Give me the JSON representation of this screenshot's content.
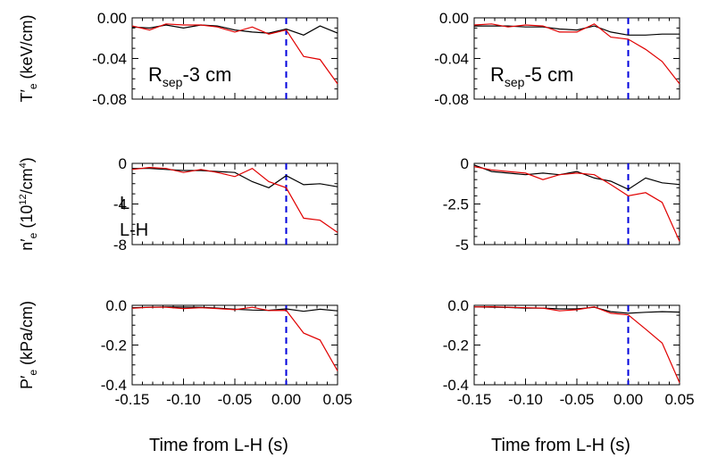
{
  "figure": {
    "x_axis_label": "Time from L-H (s)",
    "legend": [
      {
        "label": "L",
        "color": "#000000"
      },
      {
        "label": "L-H",
        "color": "#e00000"
      }
    ],
    "colors": {
      "L": "#000000",
      "L-H": "#e00000",
      "transition_line": "#0000dd"
    }
  },
  "chart_data": [
    {
      "type": "line",
      "row": 0,
      "col": 0,
      "ylabel": "T′e (keV/cm)",
      "annotation": "Rsep-3 cm",
      "xlim": [
        -0.15,
        0.05
      ],
      "ylim": [
        -0.08,
        0.0
      ],
      "xticks": [
        "-0.15",
        "-0.10",
        "-0.05",
        "0.00",
        "0.05"
      ],
      "yticks": [
        {
          "v": 0.0,
          "t": "0.00"
        },
        {
          "v": -0.04,
          "t": "-0.04"
        },
        {
          "v": -0.08,
          "t": "-0.08"
        }
      ],
      "vline_x": 0.0,
      "series": [
        {
          "name": "L",
          "x": [
            -0.15,
            -0.133,
            -0.117,
            -0.1,
            -0.083,
            -0.067,
            -0.05,
            -0.033,
            -0.017,
            0.0,
            0.017,
            0.033,
            0.05
          ],
          "y": [
            -0.009,
            -0.01,
            -0.007,
            -0.01,
            -0.007,
            -0.008,
            -0.012,
            -0.014,
            -0.015,
            -0.011,
            -0.017,
            -0.008,
            -0.015
          ]
        },
        {
          "name": "L-H",
          "x": [
            -0.15,
            -0.133,
            -0.117,
            -0.1,
            -0.083,
            -0.067,
            -0.05,
            -0.033,
            -0.017,
            0.0,
            0.017,
            0.033,
            0.05
          ],
          "y": [
            -0.008,
            -0.012,
            -0.006,
            -0.007,
            -0.007,
            -0.009,
            -0.014,
            -0.009,
            -0.016,
            -0.012,
            -0.038,
            -0.041,
            -0.065
          ]
        }
      ]
    },
    {
      "type": "line",
      "row": 0,
      "col": 1,
      "ylabel": "",
      "annotation": "Rsep-5 cm",
      "xlim": [
        -0.15,
        0.05
      ],
      "ylim": [
        -0.08,
        0.0
      ],
      "xticks": [
        "-0.15",
        "-0.10",
        "-0.05",
        "0.00",
        "0.05"
      ],
      "yticks": [
        {
          "v": 0.0,
          "t": "0.00"
        },
        {
          "v": -0.04,
          "t": "-0.04"
        },
        {
          "v": -0.08,
          "t": "-0.08"
        }
      ],
      "vline_x": 0.0,
      "series": [
        {
          "name": "L",
          "x": [
            -0.15,
            -0.133,
            -0.117,
            -0.1,
            -0.083,
            -0.067,
            -0.05,
            -0.033,
            -0.017,
            0.0,
            0.017,
            0.033,
            0.05
          ],
          "y": [
            -0.008,
            -0.008,
            -0.008,
            -0.009,
            -0.009,
            -0.011,
            -0.012,
            -0.008,
            -0.014,
            -0.017,
            -0.017,
            -0.016,
            -0.016
          ]
        },
        {
          "name": "L-H",
          "x": [
            -0.15,
            -0.133,
            -0.117,
            -0.1,
            -0.083,
            -0.067,
            -0.05,
            -0.033,
            -0.017,
            0.0,
            0.017,
            0.033,
            0.05
          ],
          "y": [
            -0.007,
            -0.006,
            -0.009,
            -0.007,
            -0.008,
            -0.014,
            -0.014,
            -0.006,
            -0.019,
            -0.021,
            -0.031,
            -0.043,
            -0.065
          ]
        }
      ]
    },
    {
      "type": "line",
      "row": 1,
      "col": 0,
      "ylabel": "n′e (10^12/cm^4)",
      "annotation": "",
      "xlim": [
        -0.15,
        0.05
      ],
      "ylim": [
        -8,
        0
      ],
      "xticks": [
        "-0.15",
        "-0.10",
        "-0.05",
        "0.00",
        "0.05"
      ],
      "yticks": [
        {
          "v": 0,
          "t": "0"
        },
        {
          "v": -4,
          "t": "-4"
        },
        {
          "v": -8,
          "t": "-8"
        }
      ],
      "vline_x": 0.0,
      "series": [
        {
          "name": "L",
          "x": [
            -0.15,
            -0.133,
            -0.117,
            -0.1,
            -0.083,
            -0.067,
            -0.05,
            -0.033,
            -0.017,
            0.0,
            0.017,
            0.033,
            0.05
          ],
          "y": [
            -0.5,
            -0.5,
            -0.6,
            -0.7,
            -0.7,
            -0.8,
            -0.9,
            -1.8,
            -2.4,
            -1.2,
            -2.1,
            -2.0,
            -2.3
          ]
        },
        {
          "name": "L-H",
          "x": [
            -0.15,
            -0.133,
            -0.117,
            -0.1,
            -0.083,
            -0.067,
            -0.05,
            -0.033,
            -0.017,
            0.0,
            0.017,
            0.033,
            0.05
          ],
          "y": [
            -0.6,
            -0.4,
            -0.5,
            -0.9,
            -0.6,
            -0.9,
            -1.3,
            -0.5,
            -1.8,
            -2.4,
            -5.4,
            -5.6,
            -6.8
          ]
        }
      ]
    },
    {
      "type": "line",
      "row": 1,
      "col": 1,
      "ylabel": "",
      "annotation": "",
      "xlim": [
        -0.15,
        0.05
      ],
      "ylim": [
        -5,
        0
      ],
      "xticks": [
        "-0.15",
        "-0.10",
        "-0.05",
        "0.00",
        "0.05"
      ],
      "yticks": [
        {
          "v": 0,
          "t": "0"
        },
        {
          "v": -2.5,
          "t": "-2.5"
        },
        {
          "v": -5,
          "t": "-5"
        }
      ],
      "vline_x": 0.0,
      "series": [
        {
          "name": "L",
          "x": [
            -0.15,
            -0.133,
            -0.117,
            -0.1,
            -0.083,
            -0.067,
            -0.05,
            -0.033,
            -0.017,
            0.0,
            0.017,
            0.033,
            0.05
          ],
          "y": [
            -0.1,
            -0.5,
            -0.6,
            -0.7,
            -0.6,
            -0.7,
            -0.5,
            -0.9,
            -1.1,
            -1.6,
            -0.9,
            -1.2,
            -1.3
          ]
        },
        {
          "name": "L-H",
          "x": [
            -0.15,
            -0.133,
            -0.117,
            -0.1,
            -0.083,
            -0.067,
            -0.05,
            -0.033,
            -0.017,
            0.0,
            0.017,
            0.033,
            0.05
          ],
          "y": [
            -0.2,
            -0.4,
            -0.5,
            -0.6,
            -1.0,
            -0.7,
            -0.6,
            -0.7,
            -1.3,
            -2.0,
            -1.8,
            -2.4,
            -4.8
          ]
        }
      ]
    },
    {
      "type": "line",
      "row": 2,
      "col": 0,
      "ylabel": "P′e (kPa/cm)",
      "annotation": "",
      "xlim": [
        -0.15,
        0.05
      ],
      "ylim": [
        -0.4,
        0.0
      ],
      "xticks": [
        "-0.15",
        "-0.10",
        "-0.05",
        "0.00",
        "0.05"
      ],
      "yticks": [
        {
          "v": 0.0,
          "t": "0.0"
        },
        {
          "v": -0.2,
          "t": "-0.2"
        },
        {
          "v": -0.4,
          "t": "-0.4"
        }
      ],
      "vline_x": 0.0,
      "series": [
        {
          "name": "L",
          "x": [
            -0.15,
            -0.133,
            -0.117,
            -0.1,
            -0.083,
            -0.067,
            -0.05,
            -0.033,
            -0.017,
            0.0,
            0.017,
            0.033,
            0.05
          ],
          "y": [
            -0.012,
            -0.01,
            -0.008,
            -0.009,
            -0.01,
            -0.014,
            -0.02,
            -0.024,
            -0.025,
            -0.018,
            -0.03,
            -0.02,
            -0.028
          ]
        },
        {
          "name": "L-H",
          "x": [
            -0.15,
            -0.133,
            -0.117,
            -0.1,
            -0.083,
            -0.067,
            -0.05,
            -0.033,
            -0.017,
            0.0,
            0.017,
            0.033,
            0.05
          ],
          "y": [
            -0.015,
            -0.01,
            -0.01,
            -0.016,
            -0.012,
            -0.016,
            -0.022,
            -0.01,
            -0.026,
            -0.025,
            -0.14,
            -0.175,
            -0.33
          ]
        }
      ]
    },
    {
      "type": "line",
      "row": 2,
      "col": 1,
      "ylabel": "",
      "annotation": "",
      "xlim": [
        -0.15,
        0.05
      ],
      "ylim": [
        -0.4,
        0.0
      ],
      "xticks": [
        "-0.15",
        "-0.10",
        "-0.05",
        "0.00",
        "0.05"
      ],
      "yticks": [
        {
          "v": 0.0,
          "t": "0.0"
        },
        {
          "v": -0.2,
          "t": "-0.2"
        },
        {
          "v": -0.4,
          "t": "-0.4"
        }
      ],
      "vline_x": 0.0,
      "series": [
        {
          "name": "L",
          "x": [
            -0.15,
            -0.133,
            -0.117,
            -0.1,
            -0.083,
            -0.067,
            -0.05,
            -0.033,
            -0.017,
            0.0,
            0.017,
            0.033,
            0.05
          ],
          "y": [
            -0.008,
            -0.01,
            -0.011,
            -0.014,
            -0.014,
            -0.018,
            -0.018,
            -0.01,
            -0.032,
            -0.04,
            -0.035,
            -0.032,
            -0.034
          ]
        },
        {
          "name": "L-H",
          "x": [
            -0.15,
            -0.133,
            -0.117,
            -0.1,
            -0.083,
            -0.067,
            -0.05,
            -0.033,
            -0.017,
            0.0,
            0.017,
            0.033,
            0.05
          ],
          "y": [
            -0.008,
            -0.007,
            -0.01,
            -0.012,
            -0.014,
            -0.028,
            -0.022,
            -0.008,
            -0.04,
            -0.048,
            -0.12,
            -0.19,
            -0.39
          ]
        }
      ]
    }
  ]
}
